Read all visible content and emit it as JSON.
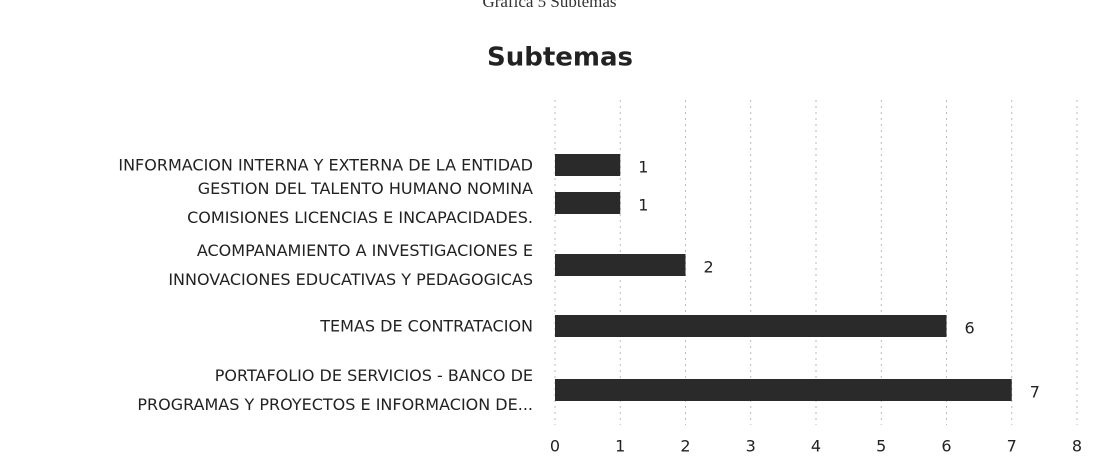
{
  "caption": "Grafica 5 Subtemas",
  "chart_data": {
    "type": "barh",
    "title": "Subtemas",
    "categories": [
      "INFORMACION INTERNA Y EXTERNA DE LA ENTIDAD",
      "GESTION DEL TALENTO HUMANO  NOMINA\nCOMISIONES  LICENCIAS E INCAPACIDADES.",
      "ACOMPANAMIENTO A INVESTIGACIONES E\nINNOVACIONES EDUCATIVAS Y PEDAGOGICAS",
      "TEMAS DE CONTRATACION",
      "PORTAFOLIO DE SERVICIOS - BANCO DE\nPROGRAMAS Y PROYECTOS E INFORMACION DE..."
    ],
    "values": [
      1,
      1,
      2,
      6,
      7
    ],
    "color": "#2a2a2a",
    "xlim": [
      0,
      8
    ],
    "xticks": [
      0,
      1,
      2,
      3,
      4,
      5,
      6,
      7,
      8
    ],
    "grid": true
  }
}
